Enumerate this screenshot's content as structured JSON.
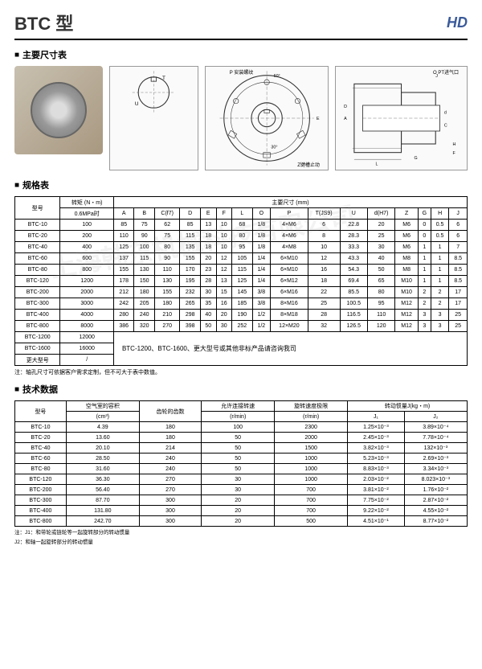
{
  "header": {
    "title": "BTC 型",
    "logo": "HD"
  },
  "sections": {
    "dimensions": "主要尺寸表",
    "specs": "规格表",
    "tech": "技术数据"
  },
  "diagram_labels": {
    "p_mount": "P 安装螺纹",
    "pt_port": "O  PT进气口",
    "z_stop": "Z键槽止动",
    "t": "T",
    "u": "U",
    "angle": "60°",
    "angle2": "30°",
    "a": "A",
    "b": "B",
    "c": "C",
    "d": "D",
    "e": "E",
    "f": "F",
    "g": "G",
    "h": "H",
    "j": "J",
    "l": "L"
  },
  "spec_table": {
    "header_model": "型号",
    "header_torque": "转矩 (N・m)",
    "header_torque_sub": "0.6MPa时",
    "header_dims": "主要尺寸 (mm)",
    "cols": [
      "A",
      "B",
      "C(f7)",
      "D",
      "E",
      "F",
      "L",
      "O",
      "P",
      "T(JS9)",
      "U",
      "d(H7)",
      "Z",
      "G",
      "H",
      "J"
    ],
    "rows": [
      {
        "m": "BTC-10",
        "t": "100",
        "v": [
          "85",
          "75",
          "62",
          "85",
          "13",
          "10",
          "68",
          "1/8",
          "4×M6",
          "6",
          "22.8",
          "20",
          "M6",
          "0",
          "0.5",
          "6"
        ]
      },
      {
        "m": "BTC-20",
        "t": "200",
        "v": [
          "110",
          "90",
          "75",
          "115",
          "18",
          "10",
          "80",
          "1/8",
          "4×M6",
          "8",
          "28.3",
          "25",
          "M6",
          "0",
          "0.5",
          "6"
        ]
      },
      {
        "m": "BTC-40",
        "t": "400",
        "v": [
          "125",
          "100",
          "80",
          "135",
          "18",
          "10",
          "95",
          "1/8",
          "4×M8",
          "10",
          "33.3",
          "30",
          "M6",
          "1",
          "1",
          "7"
        ]
      },
      {
        "m": "BTC-60",
        "t": "600",
        "v": [
          "137",
          "115",
          "90",
          "155",
          "20",
          "12",
          "105",
          "1/4",
          "6×M10",
          "12",
          "43.3",
          "40",
          "M8",
          "1",
          "1",
          "8.5"
        ]
      },
      {
        "m": "BTC-80",
        "t": "800",
        "v": [
          "155",
          "130",
          "110",
          "170",
          "23",
          "12",
          "115",
          "1/4",
          "6×M10",
          "16",
          "54.3",
          "50",
          "M8",
          "1",
          "1",
          "8.5"
        ]
      },
      {
        "m": "BTC-120",
        "t": "1200",
        "v": [
          "178",
          "150",
          "130",
          "195",
          "28",
          "13",
          "125",
          "1/4",
          "6×M12",
          "18",
          "69.4",
          "65",
          "M10",
          "1",
          "1",
          "8.5"
        ]
      },
      {
        "m": "BTC-200",
        "t": "2000",
        "v": [
          "212",
          "180",
          "155",
          "232",
          "30",
          "15",
          "145",
          "3/8",
          "6×M16",
          "22",
          "85.5",
          "80",
          "M10",
          "2",
          "2",
          "17"
        ]
      },
      {
        "m": "BTC-300",
        "t": "3000",
        "v": [
          "242",
          "205",
          "180",
          "265",
          "35",
          "16",
          "185",
          "3/8",
          "8×M16",
          "25",
          "100.5",
          "95",
          "M12",
          "2",
          "2",
          "17"
        ]
      },
      {
        "m": "BTC-400",
        "t": "4000",
        "v": [
          "280",
          "240",
          "210",
          "298",
          "40",
          "20",
          "190",
          "1/2",
          "8×M18",
          "28",
          "116.5",
          "110",
          "M12",
          "3",
          "3",
          "25"
        ]
      },
      {
        "m": "BTC-800",
        "t": "8000",
        "v": [
          "386",
          "320",
          "270",
          "398",
          "50",
          "30",
          "252",
          "1/2",
          "12×M20",
          "32",
          "126.5",
          "120",
          "M12",
          "3",
          "3",
          "25"
        ]
      }
    ],
    "extra_rows": [
      {
        "m": "BTC-1200",
        "t": "12000"
      },
      {
        "m": "BTC-1600",
        "t": "16000"
      },
      {
        "m": "更大型号",
        "t": "/"
      }
    ],
    "extra_note": "BTC-1200、BTC-1600、更大型号或其他非标产品请咨询我司",
    "footnote": "注：轴孔尺寸可依据客户需求定制，但不可大于表中数值。"
  },
  "tech_table": {
    "header_model": "型号",
    "header_air": "空气室的容积",
    "header_air_unit": "(cm³)",
    "header_teeth": "齿轮的齿数",
    "header_rpm": "允许连接转速",
    "header_rpm_unit": "(r/min)",
    "header_limit": "旋转速度极限",
    "header_limit_unit": "(r/min)",
    "header_inertia": "转动惯量J(kg・m)",
    "header_j1": "J₁",
    "header_j2": "J₂",
    "rows": [
      {
        "m": "BTC-10",
        "air": "4.39",
        "teeth": "180",
        "rpm": "100",
        "limit": "2300",
        "j1": "1.25×10⁻³",
        "j2": "3.89×10⁻⁴"
      },
      {
        "m": "BTC-20",
        "air": "13.60",
        "teeth": "180",
        "rpm": "50",
        "limit": "2000",
        "j1": "2.45×10⁻³",
        "j2": "7.78×10⁻⁴"
      },
      {
        "m": "BTC-40",
        "air": "20.10",
        "teeth": "214",
        "rpm": "50",
        "limit": "1500",
        "j1": "3.82×10⁻³",
        "j2": "132×10⁻³"
      },
      {
        "m": "BTC-60",
        "air": "28.50",
        "teeth": "240",
        "rpm": "50",
        "limit": "1000",
        "j1": "5.23×10⁻³",
        "j2": "2.69×10⁻³"
      },
      {
        "m": "BTC-80",
        "air": "31.60",
        "teeth": "240",
        "rpm": "50",
        "limit": "1000",
        "j1": "8.83×10⁻³",
        "j2": "3.34×10⁻³"
      },
      {
        "m": "BTC-120",
        "air": "36.30",
        "teeth": "270",
        "rpm": "30",
        "limit": "1000",
        "j1": "2.03×10⁻²",
        "j2": "8.023×10⁻³"
      },
      {
        "m": "BTC-200",
        "air": "56.40",
        "teeth": "270",
        "rpm": "30",
        "limit": "700",
        "j1": "3.81×10⁻²",
        "j2": "1.76×10⁻²"
      },
      {
        "m": "BTC-300",
        "air": "87.70",
        "teeth": "300",
        "rpm": "20",
        "limit": "700",
        "j1": "7.75×10⁻²",
        "j2": "2.87×10⁻²"
      },
      {
        "m": "BTC-400",
        "air": "131.80",
        "teeth": "300",
        "rpm": "20",
        "limit": "700",
        "j1": "9.22×10⁻²",
        "j2": "4.55×10⁻²"
      },
      {
        "m": "BTC-800",
        "air": "242.70",
        "teeth": "300",
        "rpm": "20",
        "limit": "500",
        "j1": "4.51×10⁻¹",
        "j2": "8.77×10⁻²"
      }
    ],
    "note1": "注：J1：和带轮或链轮等一起旋转部分的转动惯量",
    "note2": "J2：和轴一起旋转部分的转动惯量"
  },
  "watermark": "上海韩东机械科技有限公司"
}
